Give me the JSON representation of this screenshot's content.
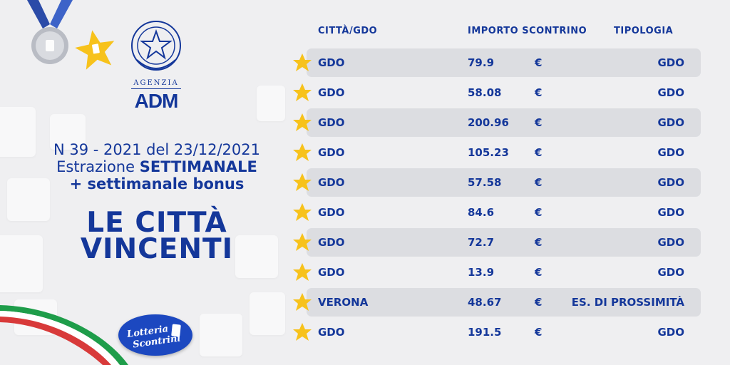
{
  "brand": {
    "agency_top": "AGENZIA",
    "agency_name": "ADM",
    "logo_text_1": "Lotteria",
    "logo_text_2": "Scontrini"
  },
  "draw": {
    "line1": "N 39 - 2021 del  23/12/2021",
    "line2_prefix": "Estrazione ",
    "line2_bold": "SETTIMANALE",
    "line3": "+ settimanale bonus"
  },
  "headline": {
    "line1": "LE CITTÀ",
    "line2": "VINCENTI"
  },
  "table": {
    "headers": {
      "city": "CITTÀ/GDO",
      "amount": "IMPORTO SCONTRINO",
      "type": "TIPOLOGIA"
    },
    "rows": [
      {
        "city": "GDO",
        "amount": "79.9",
        "currency": "€",
        "type": "GDO"
      },
      {
        "city": "GDO",
        "amount": "58.08",
        "currency": "€",
        "type": "GDO"
      },
      {
        "city": "GDO",
        "amount": "200.96",
        "currency": "€",
        "type": "GDO"
      },
      {
        "city": "GDO",
        "amount": "105.23",
        "currency": "€",
        "type": "GDO"
      },
      {
        "city": "GDO",
        "amount": "57.58",
        "currency": "€",
        "type": "GDO"
      },
      {
        "city": "GDO",
        "amount": "84.6",
        "currency": "€",
        "type": "GDO"
      },
      {
        "city": "GDO",
        "amount": "72.7",
        "currency": "€",
        "type": "GDO"
      },
      {
        "city": "GDO",
        "amount": "13.9",
        "currency": "€",
        "type": "GDO"
      },
      {
        "city": "VERONA",
        "amount": "48.67",
        "currency": "€",
        "type": "ES. DI PROSSIMITÀ"
      },
      {
        "city": "GDO",
        "amount": "191.5",
        "currency": "€",
        "type": "GDO"
      }
    ]
  },
  "colors": {
    "primary": "#14379a",
    "background": "#efeff1",
    "row_shade": "#dcdde1",
    "star": "#f7c21b"
  }
}
